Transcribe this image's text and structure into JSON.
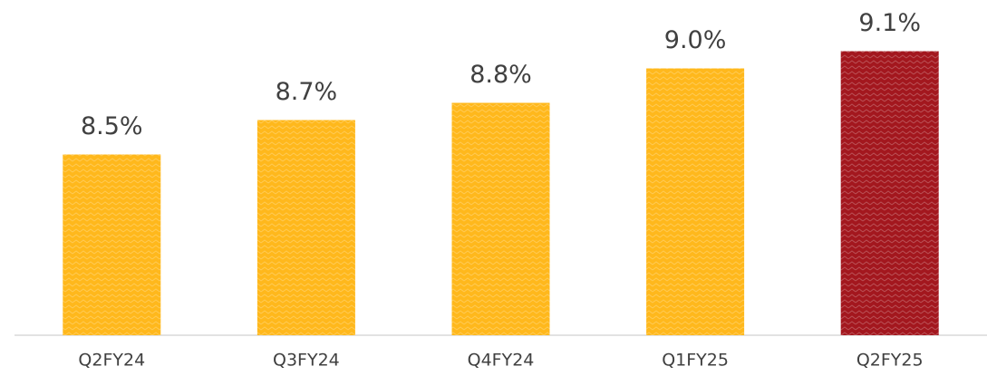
{
  "chart_data": {
    "type": "bar",
    "categories": [
      "Q2FY24",
      "Q3FY24",
      "Q4FY24",
      "Q1FY25",
      "Q2FY25"
    ],
    "values": [
      8.5,
      8.7,
      8.8,
      9.0,
      9.1
    ],
    "value_labels": [
      "8.5%",
      "8.7%",
      "8.8%",
      "9.0%",
      "9.1%"
    ],
    "colors": [
      "#FFB81C",
      "#FFB81C",
      "#FFB81C",
      "#FFB81C",
      "#A3171E"
    ],
    "ylim": [
      7.45,
      9.3
    ]
  }
}
